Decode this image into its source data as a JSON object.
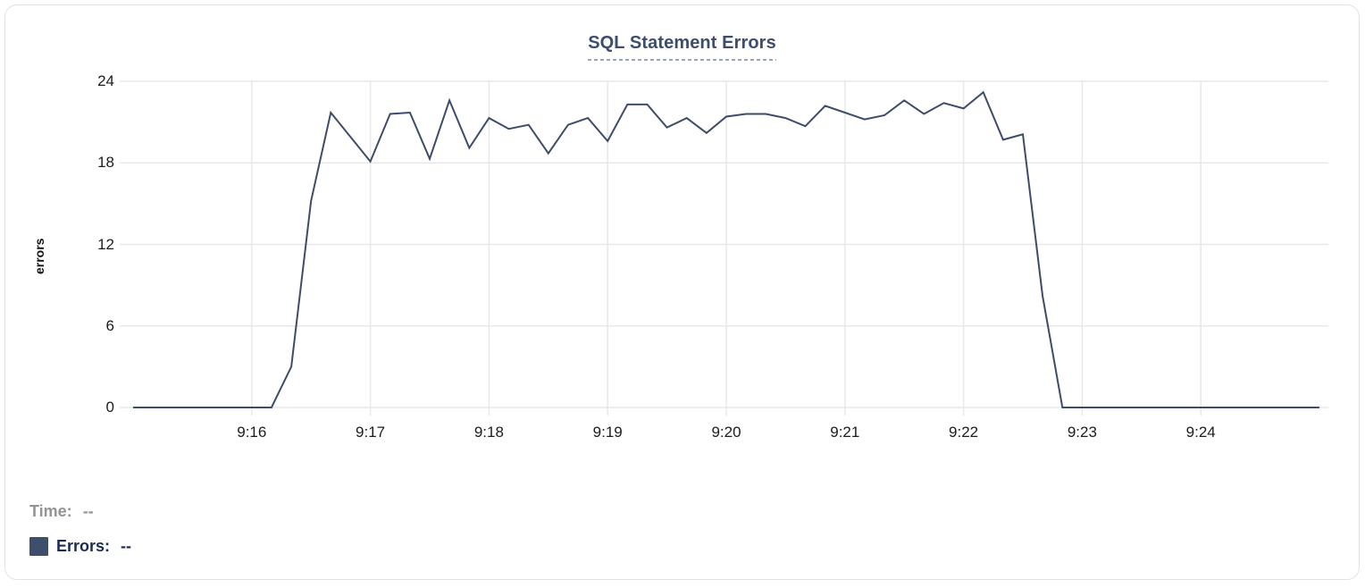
{
  "title": "SQL Statement Errors",
  "legend": {
    "time_label": "Time:",
    "time_value": "--",
    "errors_label": "Errors:",
    "errors_value": "--"
  },
  "colors": {
    "line": "#3d4c69",
    "title": "#3d4d6e",
    "grid": "#e8e8e8",
    "tick_text": "#1c1c1c",
    "legend_time": "#949494",
    "legend_errors": "#1c2b52",
    "swatch": "#3e4f6b",
    "underline": "#9aa5b8",
    "card_border": "#e2e2e2"
  },
  "chart_data": {
    "type": "line",
    "title": "SQL Statement Errors",
    "xlabel": "",
    "ylabel": "errors",
    "ylim": [
      0,
      24
    ],
    "y_ticks": [
      0,
      6,
      12,
      18,
      24
    ],
    "x_range": [
      "9:15:00",
      "9:25:00"
    ],
    "x_tick_labels": [
      "9:16",
      "9:17",
      "9:18",
      "9:19",
      "9:20",
      "9:21",
      "9:22",
      "9:23",
      "9:24"
    ],
    "grid": true,
    "legend_position": "bottom-left",
    "series": [
      {
        "name": "Errors",
        "start_time": "9:15:00",
        "end_time": "9:25:00",
        "interval_seconds": 10,
        "values": [
          0,
          0,
          0,
          0,
          0,
          0,
          0,
          0,
          3,
          15.2,
          21.7,
          19.9,
          18.1,
          21.6,
          21.7,
          18.3,
          22.6,
          19.1,
          21.3,
          20.5,
          20.8,
          18.7,
          20.8,
          21.3,
          19.6,
          22.3,
          22.3,
          20.6,
          21.3,
          20.2,
          21.4,
          21.6,
          21.6,
          21.3,
          20.7,
          22.2,
          21.7,
          21.2,
          21.5,
          22.6,
          21.6,
          22.4,
          22.0,
          23.2,
          19.7,
          20.1,
          8.2,
          0,
          0,
          0,
          0,
          0,
          0,
          0,
          0,
          0,
          0,
          0,
          0,
          0,
          0
        ]
      }
    ]
  }
}
